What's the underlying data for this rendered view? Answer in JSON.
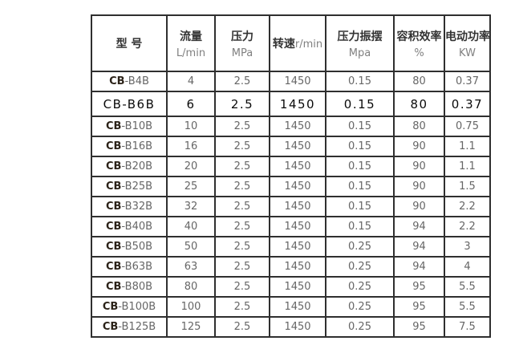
{
  "table": {
    "columns": [
      {
        "name": "型 号",
        "unit": ""
      },
      {
        "name": "流量",
        "unit": "L/min"
      },
      {
        "name": "压力",
        "unit": "MPa"
      },
      {
        "name": "转速",
        "unit": "r/min"
      },
      {
        "name": "压力振摆",
        "unit": "Mpa"
      },
      {
        "name": "容积效率",
        "unit": "%"
      },
      {
        "name": "电动功率",
        "unit": "KW"
      }
    ],
    "rows": [
      {
        "model": "CB-B4B",
        "values": [
          "4",
          "2.5",
          "1450",
          "0.15",
          "80",
          "0.37"
        ],
        "highlight": false
      },
      {
        "model": "CB-B6B",
        "values": [
          "6",
          "2.5",
          "1450",
          "0.15",
          "80",
          "0.37"
        ],
        "highlight": true
      },
      {
        "model": "CB-B10B",
        "values": [
          "10",
          "2.5",
          "1450",
          "0.15",
          "80",
          "0.75"
        ],
        "highlight": false
      },
      {
        "model": "CB-B16B",
        "values": [
          "16",
          "2.5",
          "1450",
          "0.15",
          "90",
          "1.1"
        ],
        "highlight": false
      },
      {
        "model": "CB-B20B",
        "values": [
          "20",
          "2.5",
          "1450",
          "0.15",
          "90",
          "1.1"
        ],
        "highlight": false
      },
      {
        "model": "CB-B25B",
        "values": [
          "25",
          "2.5",
          "1450",
          "0.15",
          "90",
          "1.5"
        ],
        "highlight": false
      },
      {
        "model": "CB-B32B",
        "values": [
          "32",
          "2.5",
          "1450",
          "0.15",
          "90",
          "2.2"
        ],
        "highlight": false
      },
      {
        "model": "CB-B40B",
        "values": [
          "40",
          "2.5",
          "1450",
          "0.15",
          "94",
          "2.2"
        ],
        "highlight": false
      },
      {
        "model": "CB-B50B",
        "values": [
          "50",
          "2.5",
          "1450",
          "0.25",
          "94",
          "3"
        ],
        "highlight": false
      },
      {
        "model": "CB-B63B",
        "values": [
          "63",
          "2.5",
          "1450",
          "0.25",
          "94",
          "4"
        ],
        "highlight": false
      },
      {
        "model": "CB-B80B",
        "values": [
          "80",
          "2.5",
          "1450",
          "0.25",
          "95",
          "5.5"
        ],
        "highlight": false
      },
      {
        "model": "CB-B100B",
        "values": [
          "100",
          "2.5",
          "1450",
          "0.25",
          "95",
          "5.5"
        ],
        "highlight": false
      },
      {
        "model": "CB-B125B",
        "values": [
          "125",
          "2.5",
          "1450",
          "0.25",
          "95",
          "7.5"
        ],
        "highlight": false
      }
    ]
  }
}
